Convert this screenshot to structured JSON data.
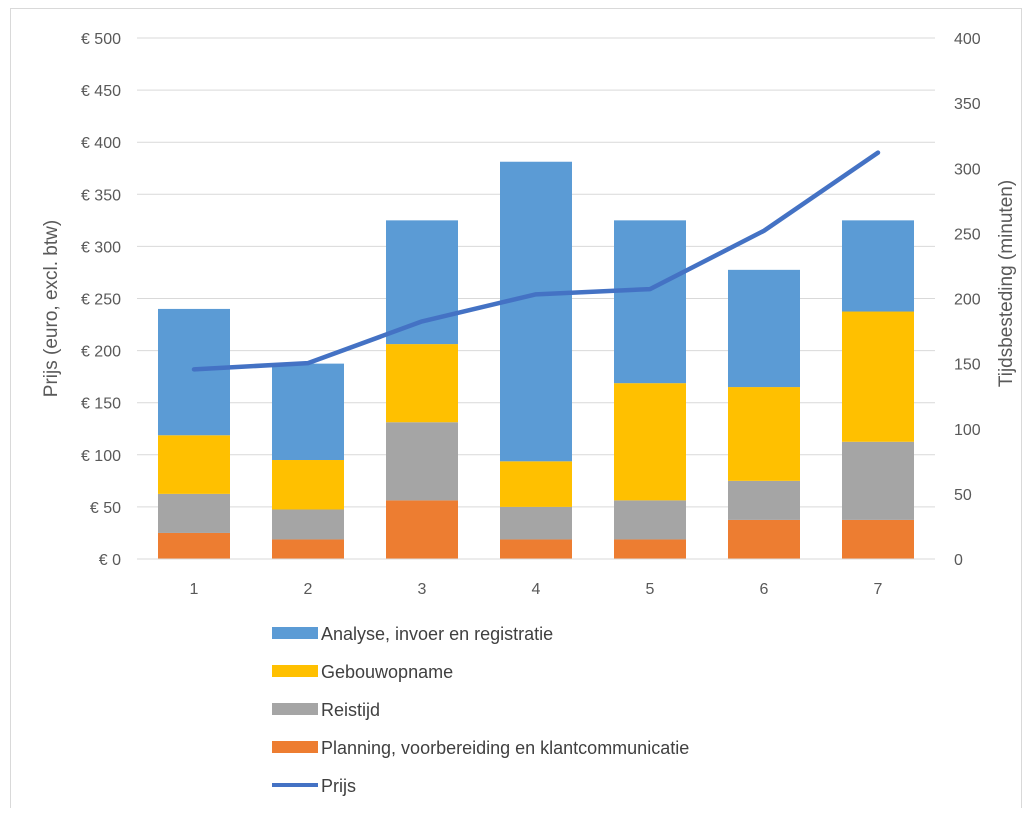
{
  "chart_data": {
    "type": "bar",
    "stacked": true,
    "categories": [
      "1",
      "2",
      "3",
      "4",
      "5",
      "6",
      "7"
    ],
    "ylabel": "Prijs (euro, excl. btw)",
    "y2label": "Tijdsbesteding (minuten)",
    "y_ticks": [
      "€ 0",
      "€ 50",
      "€ 100",
      "€ 150",
      "€ 200",
      "€ 250",
      "€ 300",
      "€ 350",
      "€ 400",
      "€ 450",
      "€ 500"
    ],
    "y2_ticks": [
      "0",
      "50",
      "100",
      "150",
      "200",
      "250",
      "300",
      "350",
      "400"
    ],
    "ylim": [
      0,
      500
    ],
    "y2lim": [
      0,
      400
    ],
    "grid": true,
    "legend_position": "bottom",
    "series": [
      {
        "name": "Planning, voorbereiding en klantcommunicatie",
        "axis": "y2",
        "color": "#ED7D31",
        "values": [
          20,
          15,
          45,
          15,
          15,
          30,
          30
        ]
      },
      {
        "name": "Reistijd",
        "axis": "y2",
        "color": "#A5A5A5",
        "values": [
          30,
          23,
          60,
          25,
          30,
          30,
          60
        ]
      },
      {
        "name": "Gebouwopname",
        "axis": "y2",
        "color": "#FFC000",
        "values": [
          45,
          38,
          60,
          35,
          90,
          72,
          100
        ]
      },
      {
        "name": "Analyse, invoer en registratie",
        "axis": "y2",
        "color": "#5B9BD5",
        "values": [
          97,
          74,
          95,
          230,
          125,
          90,
          70
        ]
      },
      {
        "name": "Prijs",
        "axis": "y",
        "type": "line",
        "color": "#4472C4",
        "values": [
          182,
          188,
          228,
          254,
          259,
          315,
          390
        ]
      }
    ],
    "legend_order": [
      "Analyse, invoer en registratie",
      "Gebouwopname",
      "Reistijd",
      "Planning, voorbereiding en klantcommunicatie",
      "Prijs"
    ]
  }
}
